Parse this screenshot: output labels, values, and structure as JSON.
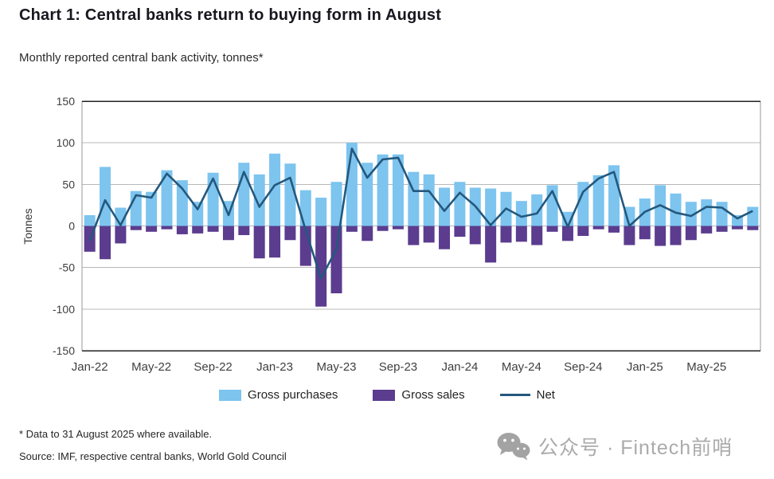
{
  "header": {
    "title": "Chart 1: Central banks return to buying form in August",
    "subtitle": "Monthly reported central bank activity, tonnes*"
  },
  "legend": {
    "items": [
      {
        "label": "Gross purchases",
        "color": "#7dc4ef",
        "type": "bar"
      },
      {
        "label": "Gross sales",
        "color": "#5b3c8e",
        "type": "bar"
      },
      {
        "label": "Net",
        "color": "#24587d",
        "type": "line"
      }
    ]
  },
  "footer": {
    "footnote": "* Data to 31 August 2025 where available.",
    "source": "Source: IMF, respective central banks, World Gold Council"
  },
  "watermark": {
    "icon": "wechat-icon",
    "text": "公众号 · Fintech前哨"
  },
  "chart_data": {
    "type": "bar",
    "title": "Chart 1: Central banks return to buying form in August",
    "subtitle": "Monthly reported central bank activity, tonnes*",
    "xlabel": "",
    "ylabel": "Tonnes",
    "ylim": [
      -150,
      150
    ],
    "yticks": [
      150,
      100,
      50,
      0,
      -50,
      -100,
      -150
    ],
    "grid": "horizontal",
    "legend_position": "bottom",
    "categories": [
      "Jan-22",
      "Feb-22",
      "Mar-22",
      "Apr-22",
      "May-22",
      "Jun-22",
      "Jul-22",
      "Aug-22",
      "Sep-22",
      "Oct-22",
      "Nov-22",
      "Dec-22",
      "Jan-23",
      "Feb-23",
      "Mar-23",
      "Apr-23",
      "May-23",
      "Jun-23",
      "Jul-23",
      "Aug-23",
      "Sep-23",
      "Oct-23",
      "Nov-23",
      "Dec-23",
      "Jan-24",
      "Feb-24",
      "Mar-24",
      "Apr-24",
      "May-24",
      "Jun-24",
      "Jul-24",
      "Aug-24",
      "Sep-24",
      "Oct-24",
      "Nov-24",
      "Dec-24",
      "Jan-25",
      "Feb-25",
      "Mar-25",
      "Apr-25",
      "May-25",
      "Jun-25",
      "Jul-25",
      "Aug-25"
    ],
    "xtick_labels": [
      "Jan-22",
      "May-22",
      "Sep-22",
      "Jan-23",
      "May-23",
      "Sep-23",
      "Jan-24",
      "May-24",
      "Sep-24",
      "Jan-25",
      "May-25"
    ],
    "series": [
      {
        "name": "Gross purchases",
        "type": "bar",
        "color": "#7dc4ef",
        "values": [
          13,
          71,
          22,
          42,
          41,
          67,
          55,
          29,
          64,
          30,
          76,
          62,
          87,
          75,
          43,
          34,
          53,
          100,
          76,
          86,
          86,
          65,
          62,
          46,
          53,
          46,
          45,
          41,
          30,
          38,
          49,
          17,
          53,
          61,
          73,
          23,
          33,
          49,
          39,
          29,
          32,
          29,
          13,
          23
        ]
      },
      {
        "name": "Gross sales",
        "type": "bar",
        "color": "#5b3c8e",
        "values": [
          -31,
          -40,
          -21,
          -5,
          -7,
          -4,
          -10,
          -9,
          -7,
          -17,
          -11,
          -39,
          -38,
          -17,
          -48,
          -97,
          -81,
          -7,
          -18,
          -6,
          -4,
          -23,
          -20,
          -28,
          -13,
          -22,
          -44,
          -20,
          -19,
          -23,
          -7,
          -18,
          -12,
          -4,
          -8,
          -23,
          -16,
          -24,
          -23,
          -17,
          -9,
          -7,
          -4,
          -5
        ]
      },
      {
        "name": "Net",
        "type": "line",
        "color": "#24587d",
        "values": [
          -18,
          31,
          1,
          37,
          34,
          63,
          45,
          20,
          57,
          13,
          65,
          23,
          49,
          58,
          -5,
          -63,
          -28,
          93,
          58,
          80,
          82,
          42,
          42,
          18,
          40,
          24,
          1,
          21,
          11,
          15,
          42,
          -1,
          41,
          57,
          65,
          0,
          17,
          25,
          16,
          12,
          23,
          22,
          9,
          18
        ]
      }
    ]
  }
}
